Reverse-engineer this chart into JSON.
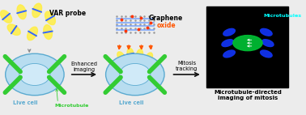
{
  "bg_color": "#ececec",
  "black_box_color": "#000000",
  "title_text": "Microtubule-directed\nimaging of mitosis",
  "var_probe_text": "VAR probe",
  "graphene_text1": "Graphene",
  "graphene_text2": "oxide",
  "enhanced_text": "Enhanced\nimaging",
  "mitosis_text": "Mitosis\ntracking",
  "live_cell_text1": "Live cell",
  "microtubule_text": "Microtubule",
  "live_cell_text2": "Live cell",
  "microtubules_label": "Microtubules",
  "cell_fill": "#b8ddf0",
  "cell_edge": "#5aaad0",
  "nucleus_fill": "#d0eaf8",
  "green_color": "#33cc33",
  "yellow_color": "#ffee44",
  "blue_rod_color": "#3366ff",
  "orange_color": "#ff5500",
  "graphene_node": "#999999",
  "graphene_line": "#6699ff",
  "graphene_red": "#ff3300",
  "mitosis_green": "#00bb33",
  "mitosis_blue": "#1133ee",
  "arrow_color": "#111111",
  "label_fs": 5.5,
  "small_fs": 4.8,
  "title_fs": 5.0
}
